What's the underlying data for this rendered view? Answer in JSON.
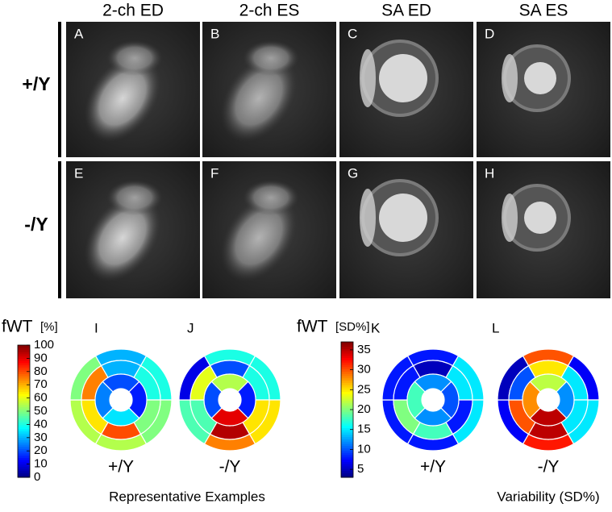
{
  "columns": [
    "2-ch ED",
    "2-ch ES",
    "SA ED",
    "SA ES"
  ],
  "rows": [
    {
      "label": "+/Y",
      "panels": [
        "A",
        "B",
        "C",
        "D"
      ]
    },
    {
      "label": "-/Y",
      "panels": [
        "E",
        "F",
        "G",
        "H"
      ]
    }
  ],
  "maps": [
    {
      "quantity": "fWT",
      "unit": "[%]",
      "colormap": "jet",
      "clim": [
        0,
        100
      ],
      "ticks": [
        0,
        10,
        20,
        30,
        40,
        50,
        60,
        70,
        80,
        90,
        100
      ],
      "caption": "Representative Examples",
      "bullseyes": [
        {
          "panel": "I",
          "label": "+/Y",
          "outer": [
            30,
            40,
            50,
            55,
            55,
            50
          ],
          "middle": [
            30,
            40,
            50,
            80,
            65,
            75
          ],
          "inner": [
            20,
            15,
            35,
            25
          ]
        },
        {
          "panel": "J",
          "label": "-/Y",
          "outer": [
            40,
            40,
            65,
            75,
            45,
            10
          ],
          "middle": [
            20,
            40,
            65,
            95,
            45,
            60
          ],
          "inner": [
            55,
            15,
            90,
            20
          ]
        }
      ]
    },
    {
      "quantity": "fWT",
      "unit": "[SD%]",
      "colormap": "jet",
      "clim": [
        3,
        37
      ],
      "ticks": [
        5,
        10,
        15,
        20,
        25,
        30,
        35
      ],
      "caption": "Variability (SD%)",
      "bullseyes": [
        {
          "panel": "K",
          "label": "+/Y",
          "outer": [
            8,
            15,
            15,
            8,
            8,
            8
          ],
          "middle": [
            5,
            15,
            8,
            18,
            20,
            8
          ],
          "inner": [
            12,
            10,
            12,
            18
          ]
        },
        {
          "panel": "L",
          "label": "-/Y",
          "outer": [
            30,
            7,
            15,
            32,
            7,
            5
          ],
          "middle": [
            25,
            15,
            15,
            35,
            30,
            10
          ],
          "inner": [
            22,
            12,
            35,
            28
          ]
        }
      ]
    }
  ]
}
